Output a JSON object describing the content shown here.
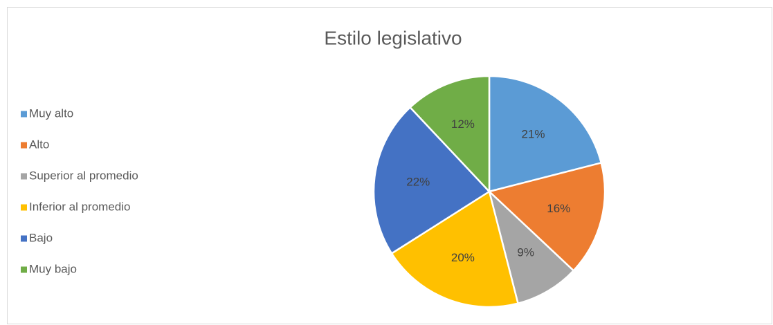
{
  "chart_data": {
    "type": "pie",
    "title": "Estilo legislativo",
    "categories": [
      "Muy alto",
      "Alto",
      "Superior al promedio",
      "Inferior al promedio",
      "Bajo",
      "Muy bajo"
    ],
    "values": [
      21,
      16,
      9,
      20,
      22,
      12
    ],
    "value_labels": [
      "21%",
      "16%",
      "9%",
      "20%",
      "22%",
      "12%"
    ],
    "colors": [
      "#5b9bd5",
      "#ed7d31",
      "#a5a5a5",
      "#ffc000",
      "#4472c4",
      "#70ad47"
    ],
    "legend": "left"
  }
}
